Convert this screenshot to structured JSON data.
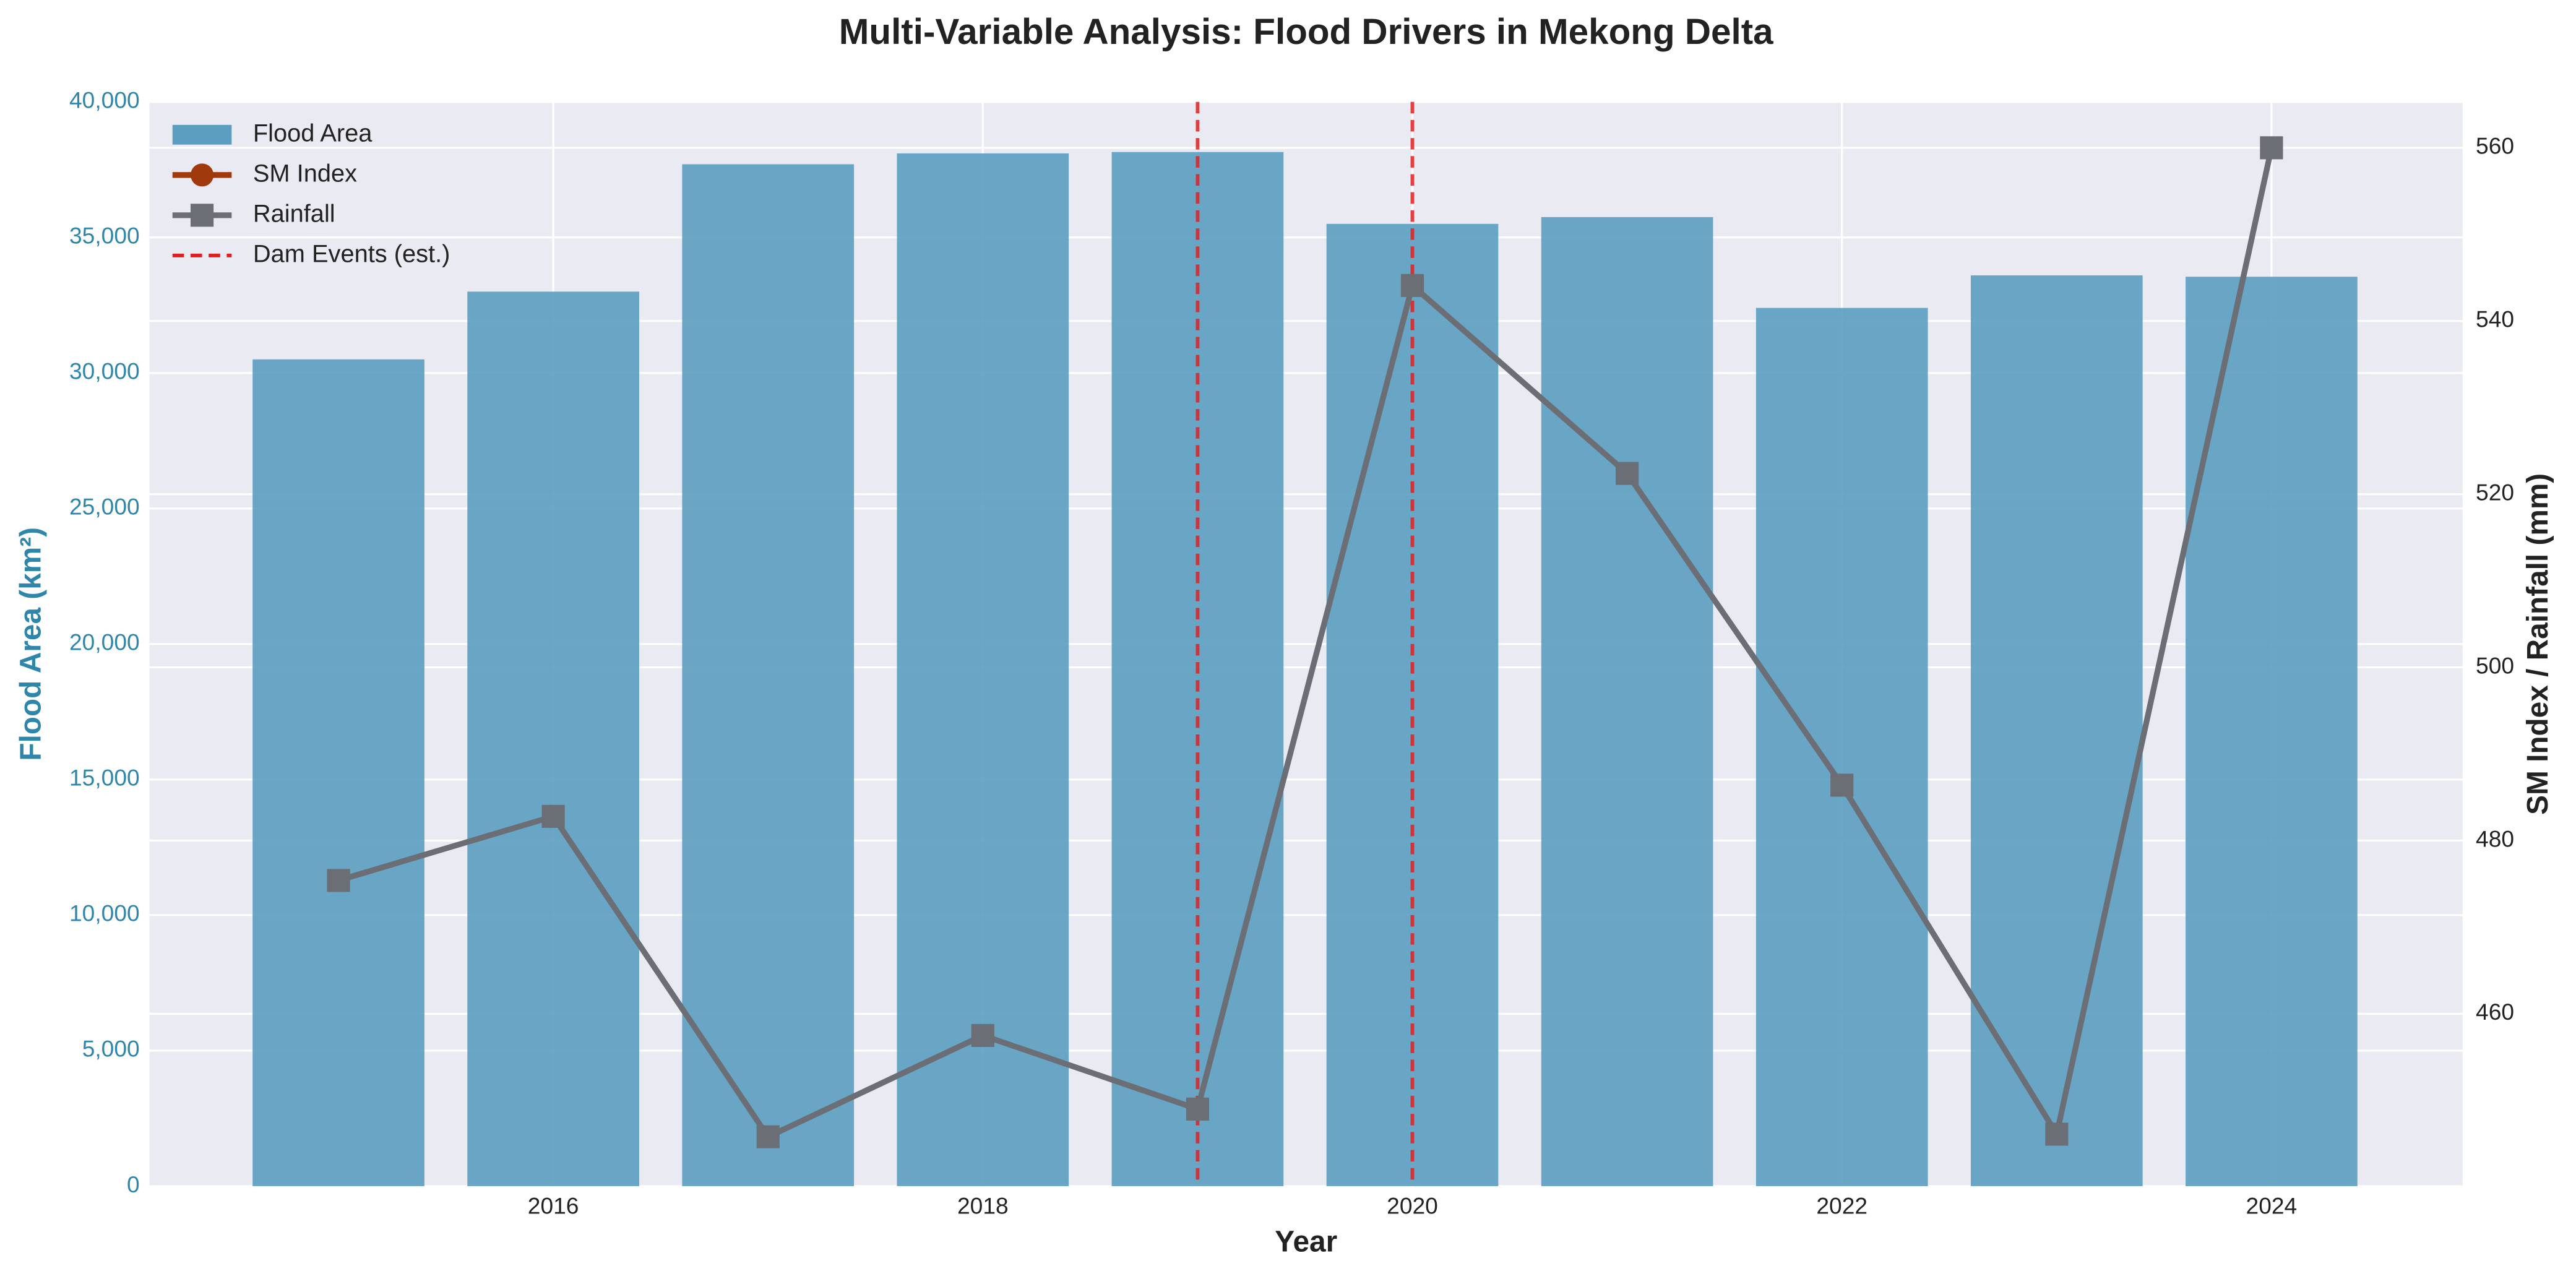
{
  "chart_data": {
    "type": "bar",
    "title": "Multi-Variable Analysis: Flood Drivers in Mekong Delta",
    "xlabel": "Year",
    "ylabel": "Flood Area (km²)",
    "y2label": "SM Index / Rainfall (mm)",
    "x": [
      2015,
      2016,
      2017,
      2018,
      2019,
      2020,
      2021,
      2022,
      2023,
      2024
    ],
    "xlim": [
      2014.12,
      2024.89
    ],
    "xticks": [
      2016,
      2018,
      2020,
      2022,
      2024
    ],
    "ylim": [
      0,
      40000
    ],
    "yticks": [
      0,
      {
        "value": 5000,
        "label": "5,000"
      },
      {
        "value": 10000,
        "label": "10,000"
      },
      {
        "value": 15000,
        "label": "15,000"
      },
      {
        "value": 20000,
        "label": "20,000"
      },
      {
        "value": 25000,
        "label": "25,000"
      },
      {
        "value": 30000,
        "label": "30,000"
      },
      {
        "value": 35000,
        "label": "35,000"
      },
      {
        "value": 40000,
        "label": "40,000"
      }
    ],
    "y2lim": [
      440.1,
      565.3
    ],
    "y2ticks": [
      460,
      480,
      500,
      520,
      540,
      560
    ],
    "grid": true,
    "legend": "upper left",
    "series": [
      {
        "name": "Flood Area",
        "type": "bar",
        "color": "#5b9ec0",
        "values": [
          30500,
          33000,
          37700,
          38100,
          38150,
          35500,
          35750,
          32400,
          33600,
          33550
        ]
      },
      {
        "name": "SM Index",
        "type": "line",
        "axis": "y2",
        "marker": "circle",
        "color": "#a0390b",
        "values": [
          null,
          null,
          null,
          null,
          null,
          null,
          null,
          null,
          null,
          null
        ]
      },
      {
        "name": "Rainfall",
        "type": "line",
        "axis": "y2",
        "marker": "square",
        "color": "#6b6e75",
        "values": [
          475.4,
          482.8,
          445.8,
          457.5,
          449.0,
          544.1,
          522.4,
          486.4,
          446.1,
          560.0
        ]
      }
    ],
    "dam_events": {
      "name": "Dam Events (est.)",
      "color": "#e02020",
      "x": [
        2019,
        2020
      ]
    }
  }
}
